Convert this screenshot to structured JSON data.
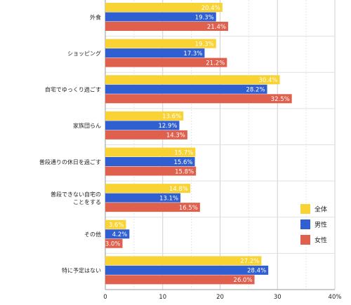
{
  "chart_data": {
    "type": "bar",
    "orientation": "horizontal",
    "categories": [
      "外食",
      "ショッピング",
      "自宅でゆっくり過ごす",
      "家族団らん",
      "普段通りの休日を過ごす",
      "普段できない自宅の\nことをする",
      "その他",
      "特に予定はない"
    ],
    "series": [
      {
        "name": "全体",
        "color": "#f9d234",
        "values": [
          20.4,
          19.3,
          30.4,
          13.6,
          15.7,
          14.8,
          3.6,
          27.2
        ],
        "labels": [
          "20.4%",
          "19.3%",
          "30.4%",
          "13.6%",
          "15.7%",
          "14.8%",
          "3.6%",
          "27.2%"
        ]
      },
      {
        "name": "男性",
        "color": "#2f5fd0",
        "values": [
          19.3,
          17.3,
          28.2,
          12.9,
          15.6,
          13.1,
          4.2,
          28.4
        ],
        "labels": [
          "19.3%",
          "17.3%",
          "28.2%",
          "12.9%",
          "15.6%",
          "13.1%",
          "4.2%",
          "28.4%"
        ]
      },
      {
        "name": "女性",
        "color": "#e0604e",
        "values": [
          21.4,
          21.2,
          32.5,
          14.3,
          15.8,
          16.5,
          3.0,
          26.0
        ],
        "labels": [
          "21.4%",
          "21.2%",
          "32.5%",
          "14.3%",
          "15.8%",
          "16.5%",
          "3.0%",
          "26.0%"
        ]
      }
    ],
    "xlim": [
      0,
      40
    ],
    "xticks": [
      "0",
      "10",
      "20",
      "30",
      "40%"
    ],
    "grid": true,
    "legend_position": "right"
  }
}
